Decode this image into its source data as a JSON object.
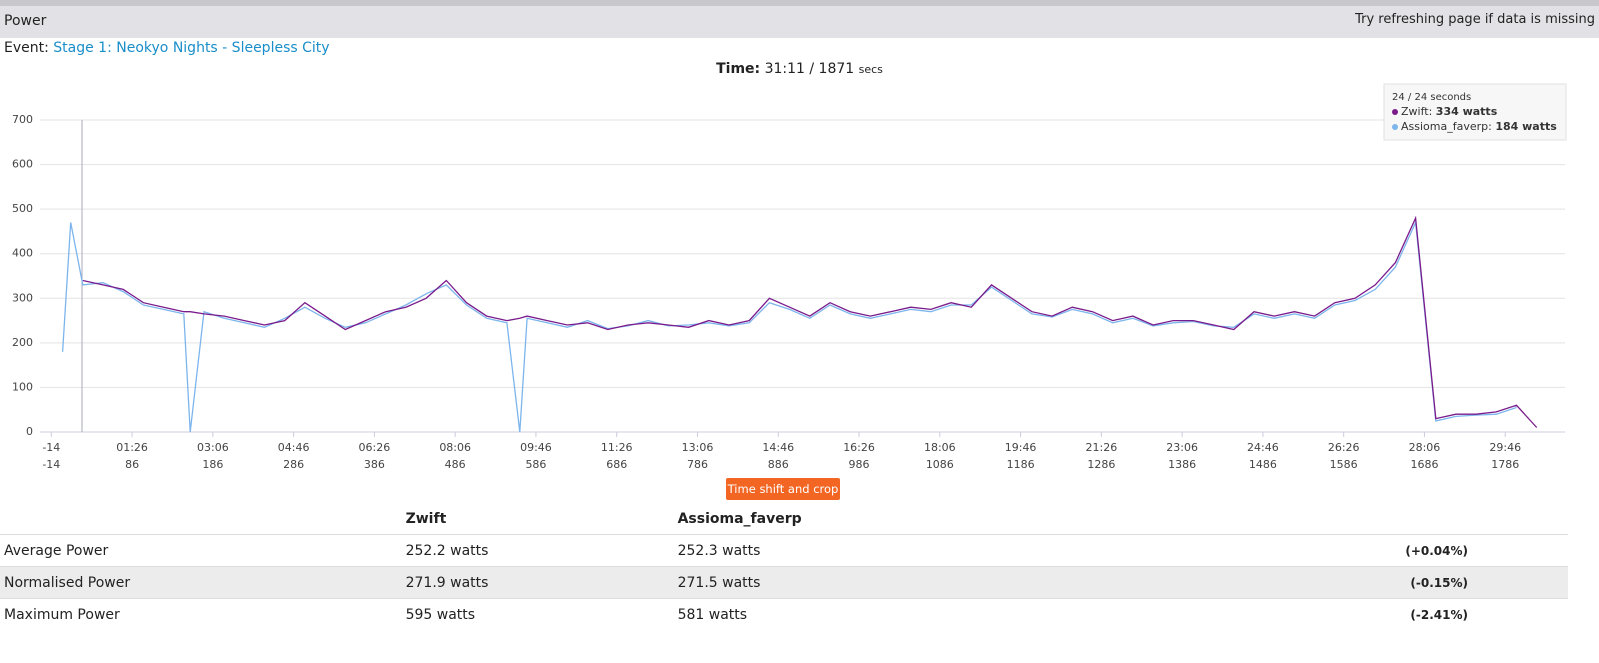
{
  "header": {
    "title": "Power",
    "note": "Try refreshing page if data is missing"
  },
  "event": {
    "label": "Event:",
    "name": "Stage 1: Neokyo Nights - Sleepless City"
  },
  "time": {
    "label": "Time:",
    "value": "31:11 / 1871",
    "unit": "secs"
  },
  "chart_data": {
    "type": "line",
    "x": [
      0,
      10,
      25,
      50,
      75,
      100,
      125,
      150,
      158,
      175,
      200,
      225,
      250,
      275,
      300,
      325,
      350,
      375,
      400,
      425,
      450,
      475,
      500,
      525,
      550,
      566,
      575,
      600,
      625,
      650,
      675,
      700,
      725,
      750,
      775,
      800,
      825,
      850,
      875,
      900,
      925,
      950,
      975,
      1000,
      1025,
      1050,
      1075,
      1100,
      1125,
      1150,
      1175,
      1200,
      1225,
      1250,
      1275,
      1300,
      1325,
      1350,
      1375,
      1400,
      1425,
      1450,
      1475,
      1500,
      1525,
      1550,
      1575,
      1600,
      1625,
      1650,
      1675,
      1700,
      1725,
      1750,
      1775,
      1800,
      1825
    ],
    "series": [
      {
        "name": "Assioma_faverp",
        "color": "#7cb5ec",
        "values": [
          180,
          470,
          330,
          335,
          315,
          285,
          275,
          265,
          0,
          270,
          255,
          245,
          235,
          255,
          280,
          255,
          235,
          245,
          265,
          285,
          310,
          330,
          285,
          255,
          245,
          0,
          255,
          245,
          235,
          250,
          232,
          238,
          250,
          238,
          240,
          245,
          238,
          245,
          290,
          275,
          255,
          285,
          265,
          255,
          265,
          275,
          270,
          285,
          285,
          325,
          295,
          265,
          258,
          275,
          265,
          245,
          255,
          238,
          245,
          248,
          238,
          235,
          265,
          255,
          265,
          255,
          285,
          295,
          320,
          370,
          470,
          25,
          35,
          38,
          40,
          55,
          null
        ]
      },
      {
        "name": "Zwift",
        "color": "#7a1b8c",
        "values": [
          null,
          null,
          340,
          330,
          320,
          290,
          280,
          270,
          270,
          265,
          260,
          250,
          240,
          250,
          290,
          260,
          230,
          250,
          270,
          280,
          300,
          340,
          290,
          260,
          250,
          255,
          260,
          250,
          240,
          245,
          230,
          240,
          245,
          240,
          235,
          250,
          240,
          250,
          300,
          280,
          260,
          290,
          270,
          260,
          270,
          280,
          275,
          290,
          280,
          330,
          300,
          270,
          260,
          280,
          270,
          250,
          260,
          240,
          250,
          250,
          240,
          230,
          270,
          260,
          270,
          260,
          290,
          300,
          330,
          380,
          480,
          30,
          40,
          40,
          45,
          60,
          10
        ]
      }
    ],
    "xlim": [
      -28,
      1860
    ],
    "xticks": [
      -14,
      {
        "value": 86,
        "label": "01:26"
      },
      {
        "value": 186,
        "label": "03:06"
      },
      {
        "value": 286,
        "label": "04:46"
      },
      {
        "value": 386,
        "label": "06:26"
      },
      {
        "value": 486,
        "label": "08:06"
      },
      {
        "value": 586,
        "label": "09:46"
      },
      {
        "value": 686,
        "label": "11:26"
      },
      {
        "value": 786,
        "label": "13:06"
      },
      {
        "value": 886,
        "label": "14:46"
      },
      {
        "value": 986,
        "label": "16:26"
      },
      {
        "value": 1086,
        "label": "18:06"
      },
      {
        "value": 1186,
        "label": "19:46"
      },
      {
        "value": 1286,
        "label": "21:26"
      },
      {
        "value": 1386,
        "label": "23:06"
      },
      {
        "value": 1486,
        "label": "24:46"
      },
      {
        "value": 1586,
        "label": "26:26"
      },
      {
        "value": 1686,
        "label": "28:06"
      },
      {
        "value": 1786,
        "label": "29:46"
      }
    ],
    "x2ticks": [
      -14,
      86,
      186,
      286,
      386,
      486,
      586,
      686,
      786,
      886,
      986,
      1086,
      1186,
      1286,
      1386,
      1486,
      1586,
      1686,
      1786
    ],
    "ylim": [
      0,
      700
    ],
    "yticks": [
      0,
      100,
      200,
      300,
      400,
      500,
      600,
      700
    ],
    "grid": true,
    "cursor_x": 24,
    "tooltip": {
      "title": "24 / 24 seconds",
      "rows": [
        {
          "name": "Zwift:",
          "value": "334 watts",
          "color": "#7a1b8c"
        },
        {
          "name": "Assioma_faverp:",
          "value": "184 watts",
          "color": "#7cb5ec"
        }
      ]
    }
  },
  "button": "Time shift and crop",
  "table": {
    "columns": [
      "Zwift",
      "Assioma_faverp"
    ],
    "rows": [
      {
        "label": "Average Power",
        "values": [
          "252.2 watts",
          "252.3 watts"
        ],
        "diff": "(+0.04%)"
      },
      {
        "label": "Normalised Power",
        "values": [
          "271.9 watts",
          "271.5 watts"
        ],
        "diff": "(-0.15%)"
      },
      {
        "label": "Maximum Power",
        "values": [
          "595 watts",
          "581 watts"
        ],
        "diff": "(-2.41%)"
      }
    ]
  }
}
